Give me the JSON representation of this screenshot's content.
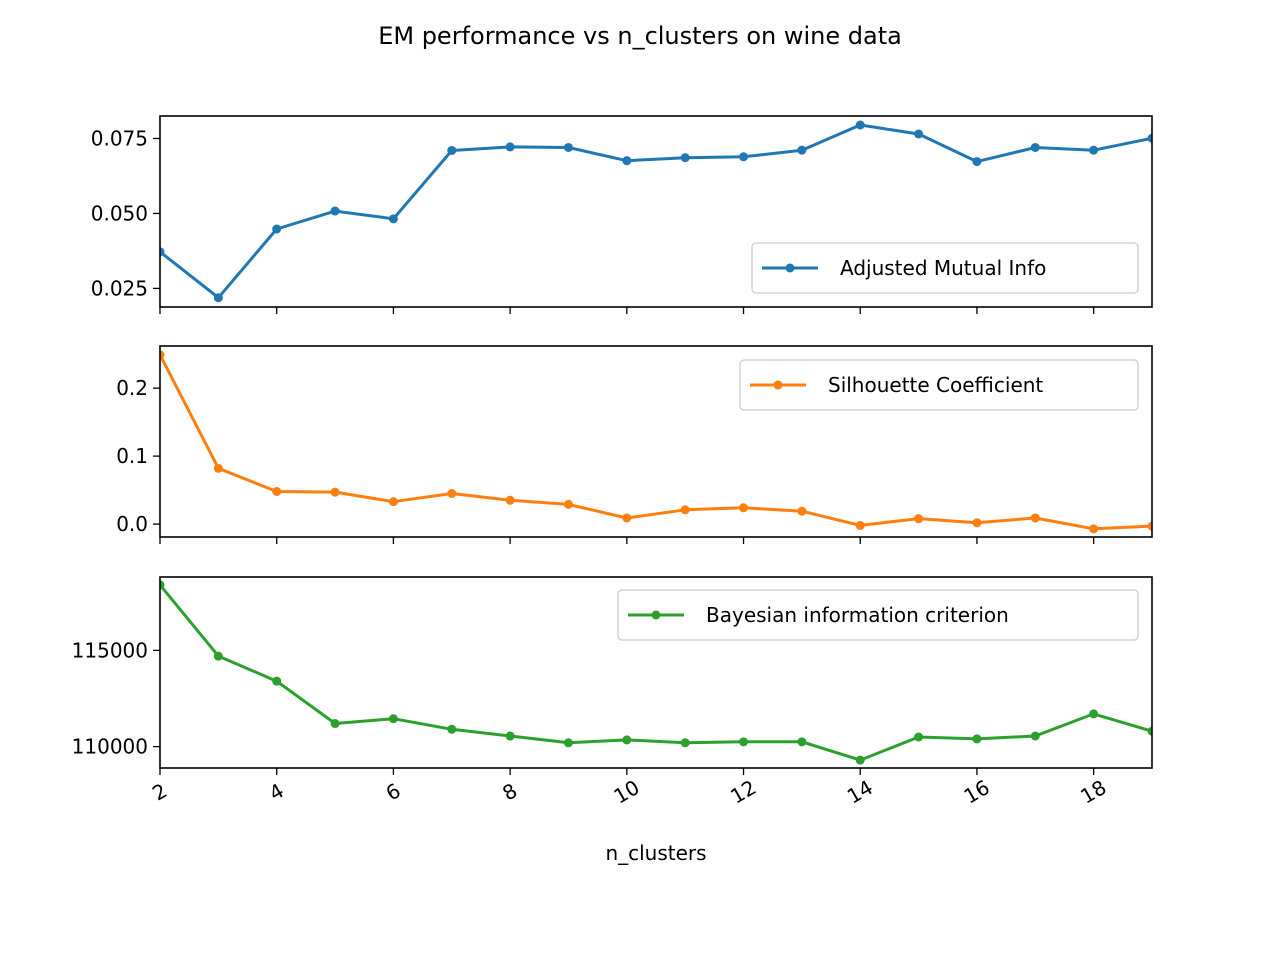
{
  "figure_title": "EM performance vs n_clusters on wine data",
  "xlabel": "n_clusters",
  "chart_data": [
    {
      "type": "line",
      "title": "",
      "xlabel": "",
      "ylabel": "",
      "x": [
        2,
        3,
        4,
        5,
        6,
        7,
        8,
        9,
        10,
        11,
        12,
        13,
        14,
        15,
        16,
        17,
        18,
        19
      ],
      "series": [
        {
          "name": "Adjusted Mutual Info",
          "color": "#1f77b4",
          "values": [
            0.0372,
            0.0219,
            0.0448,
            0.0508,
            0.0482,
            0.071,
            0.0722,
            0.072,
            0.0676,
            0.0686,
            0.0689,
            0.0711,
            0.0795,
            0.0765,
            0.0673,
            0.072,
            0.0711,
            0.0751
          ]
        }
      ],
      "xlim": [
        2,
        19
      ],
      "ylim": [
        0.0188,
        0.0825
      ],
      "yticks": [
        0.025,
        0.05,
        0.075
      ],
      "ytick_labels": [
        "0.025",
        "0.050",
        "0.075"
      ],
      "legend": "lower right",
      "grid": false
    },
    {
      "type": "line",
      "title": "",
      "xlabel": "",
      "ylabel": "",
      "x": [
        2,
        3,
        4,
        5,
        6,
        7,
        8,
        9,
        10,
        11,
        12,
        13,
        14,
        15,
        16,
        17,
        18,
        19
      ],
      "series": [
        {
          "name": "Silhouette Coefficient",
          "color": "#ff7f0e",
          "values": [
            0.249,
            0.082,
            0.048,
            0.047,
            0.033,
            0.045,
            0.035,
            0.029,
            0.009,
            0.021,
            0.024,
            0.019,
            -0.002,
            0.008,
            0.002,
            0.009,
            -0.007,
            -0.003
          ]
        }
      ],
      "xlim": [
        2,
        19
      ],
      "ylim": [
        -0.019,
        0.262
      ],
      "yticks": [
        0.0,
        0.1,
        0.2
      ],
      "ytick_labels": [
        "0.0",
        "0.1",
        "0.2"
      ],
      "legend": "upper right",
      "grid": false
    },
    {
      "type": "line",
      "title": "",
      "xlabel": "n_clusters",
      "ylabel": "",
      "x": [
        2,
        3,
        4,
        5,
        6,
        7,
        8,
        9,
        10,
        11,
        12,
        13,
        14,
        15,
        16,
        17,
        18,
        19
      ],
      "series": [
        {
          "name": "Bayesian information criterion",
          "color": "#2ca02c",
          "values": [
            118400,
            114700,
            113400,
            111200,
            111450,
            110900,
            110550,
            110200,
            110350,
            110200,
            110250,
            110250,
            109300,
            110500,
            110400,
            110550,
            111700,
            110800
          ]
        }
      ],
      "xlim": [
        2,
        19
      ],
      "ylim": [
        108890,
        118810
      ],
      "yticks": [
        110000,
        115000
      ],
      "ytick_labels": [
        "110000",
        "115000"
      ],
      "legend": "upper right",
      "grid": false
    }
  ],
  "xticks": [
    2,
    4,
    6,
    8,
    10,
    12,
    14,
    16,
    18
  ],
  "xtick_labels": [
    "2",
    "4",
    "6",
    "8",
    "10",
    "12",
    "14",
    "16",
    "18"
  ]
}
